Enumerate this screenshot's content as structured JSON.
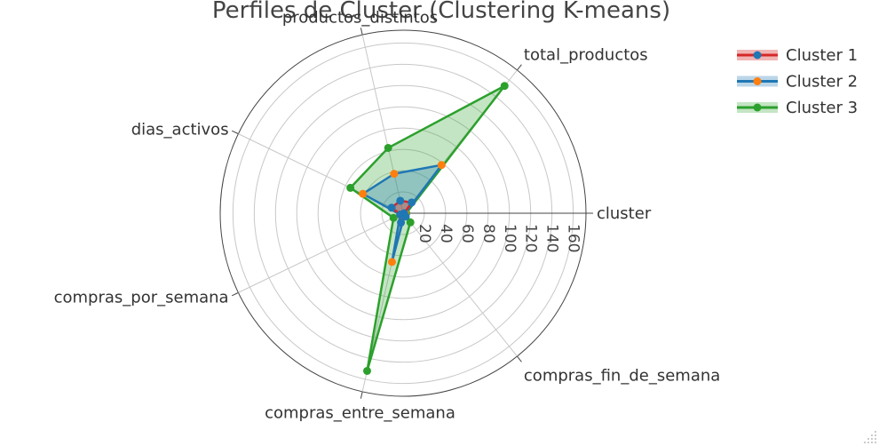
{
  "chart_data": {
    "type": "radar",
    "title": "Perfiles de Cluster (Clustering K-means)",
    "axes": [
      "cluster",
      "total_productos",
      "productos_distintos",
      "dias_activos",
      "compras_por_semana",
      "compras_entre_semana",
      "compras_fin_de_semana"
    ],
    "radial_ticks": [
      20,
      40,
      60,
      80,
      100,
      120,
      140,
      160
    ],
    "radial_range": [
      0,
      172
    ],
    "grid": true,
    "legend_position": "top-right",
    "series": [
      {
        "name": "Cluster 1",
        "values": [
          1,
          13,
          12,
          12,
          3,
          9,
          4
        ]
      },
      {
        "name": "Cluster 2",
        "values": [
          2,
          58,
          38,
          42,
          3,
          47,
          2
        ]
      },
      {
        "name": "Cluster 3",
        "values": [
          3,
          153,
          63,
          55,
          10,
          152,
          11
        ]
      }
    ],
    "colors": {
      "Cluster 1": {
        "line": "#d62728",
        "marker": "#1f77b4",
        "fill": "rgba(214,39,40,0.35)"
      },
      "Cluster 2": {
        "line": "#1f77b4",
        "marker": "#ff7f0e",
        "fill": "rgba(31,119,180,0.30)"
      },
      "Cluster 3": {
        "line": "#2ca02c",
        "marker": "#2ca02c",
        "fill": "rgba(44,160,44,0.28)"
      }
    }
  }
}
